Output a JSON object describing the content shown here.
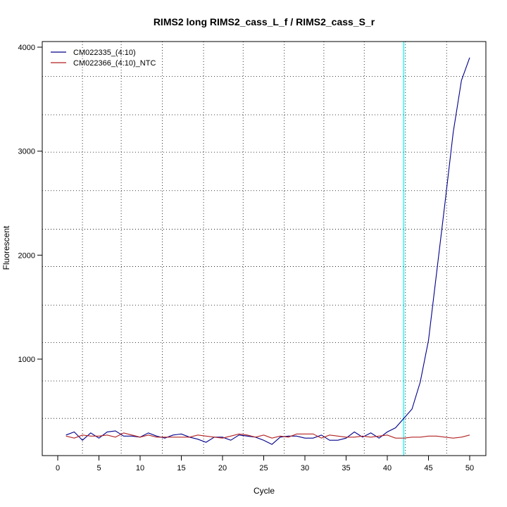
{
  "chart_data": {
    "type": "line",
    "title": "RIMS2 long RIMS2_cass_L_f / RIMS2_cass_S_r",
    "xlabel": "Cycle",
    "ylabel": "Fluorescent",
    "xlim": [
      1,
      50
    ],
    "ylim": [
      200,
      4000
    ],
    "x_ticks": [
      0,
      5,
      10,
      15,
      20,
      25,
      30,
      35,
      40,
      45,
      50
    ],
    "y_ticks": [
      1000,
      2000,
      3000,
      4000
    ],
    "legend_position": "top-left",
    "grid": true,
    "grid_x_dotted": [
      3,
      7.7,
      12.7,
      17.7,
      22.5,
      27.5,
      32.3,
      37.2,
      42.2,
      47.2
    ],
    "grid_y_dotted": [
      430,
      790,
      1160,
      1520,
      1890,
      2250,
      2620,
      2990,
      3350,
      3720
    ],
    "threshold_cycle": 42.0,
    "threshold_color": "#00ffff",
    "x": [
      1,
      2,
      3,
      4,
      5,
      6,
      7,
      8,
      9,
      10,
      11,
      12,
      13,
      14,
      15,
      16,
      17,
      18,
      19,
      20,
      21,
      22,
      23,
      24,
      25,
      26,
      27,
      28,
      29,
      30,
      31,
      32,
      33,
      34,
      35,
      36,
      37,
      38,
      39,
      40,
      41,
      42,
      43,
      44,
      45,
      46,
      47,
      48,
      49,
      50
    ],
    "series": [
      {
        "name": "CM022335_(4:10)",
        "color": "#00008b",
        "values": [
          270,
          300,
          220,
          290,
          240,
          300,
          310,
          260,
          260,
          250,
          290,
          260,
          240,
          270,
          280,
          250,
          230,
          200,
          250,
          250,
          220,
          270,
          260,
          250,
          220,
          180,
          250,
          260,
          260,
          240,
          240,
          270,
          220,
          220,
          240,
          300,
          250,
          290,
          240,
          300,
          340,
          430,
          520,
          780,
          1180,
          1840,
          2500,
          3180,
          3680,
          3900
        ]
      },
      {
        "name": "CM022366_(4:10)_NTC",
        "color": "#b22222",
        "values": [
          260,
          240,
          270,
          260,
          260,
          270,
          250,
          290,
          270,
          250,
          270,
          250,
          250,
          250,
          250,
          250,
          270,
          260,
          250,
          240,
          260,
          280,
          270,
          250,
          270,
          240,
          260,
          250,
          280,
          280,
          280,
          240,
          270,
          260,
          250,
          250,
          260,
          250,
          260,
          270,
          240,
          240,
          250,
          250,
          260,
          260,
          250,
          240,
          250,
          270
        ]
      }
    ]
  }
}
